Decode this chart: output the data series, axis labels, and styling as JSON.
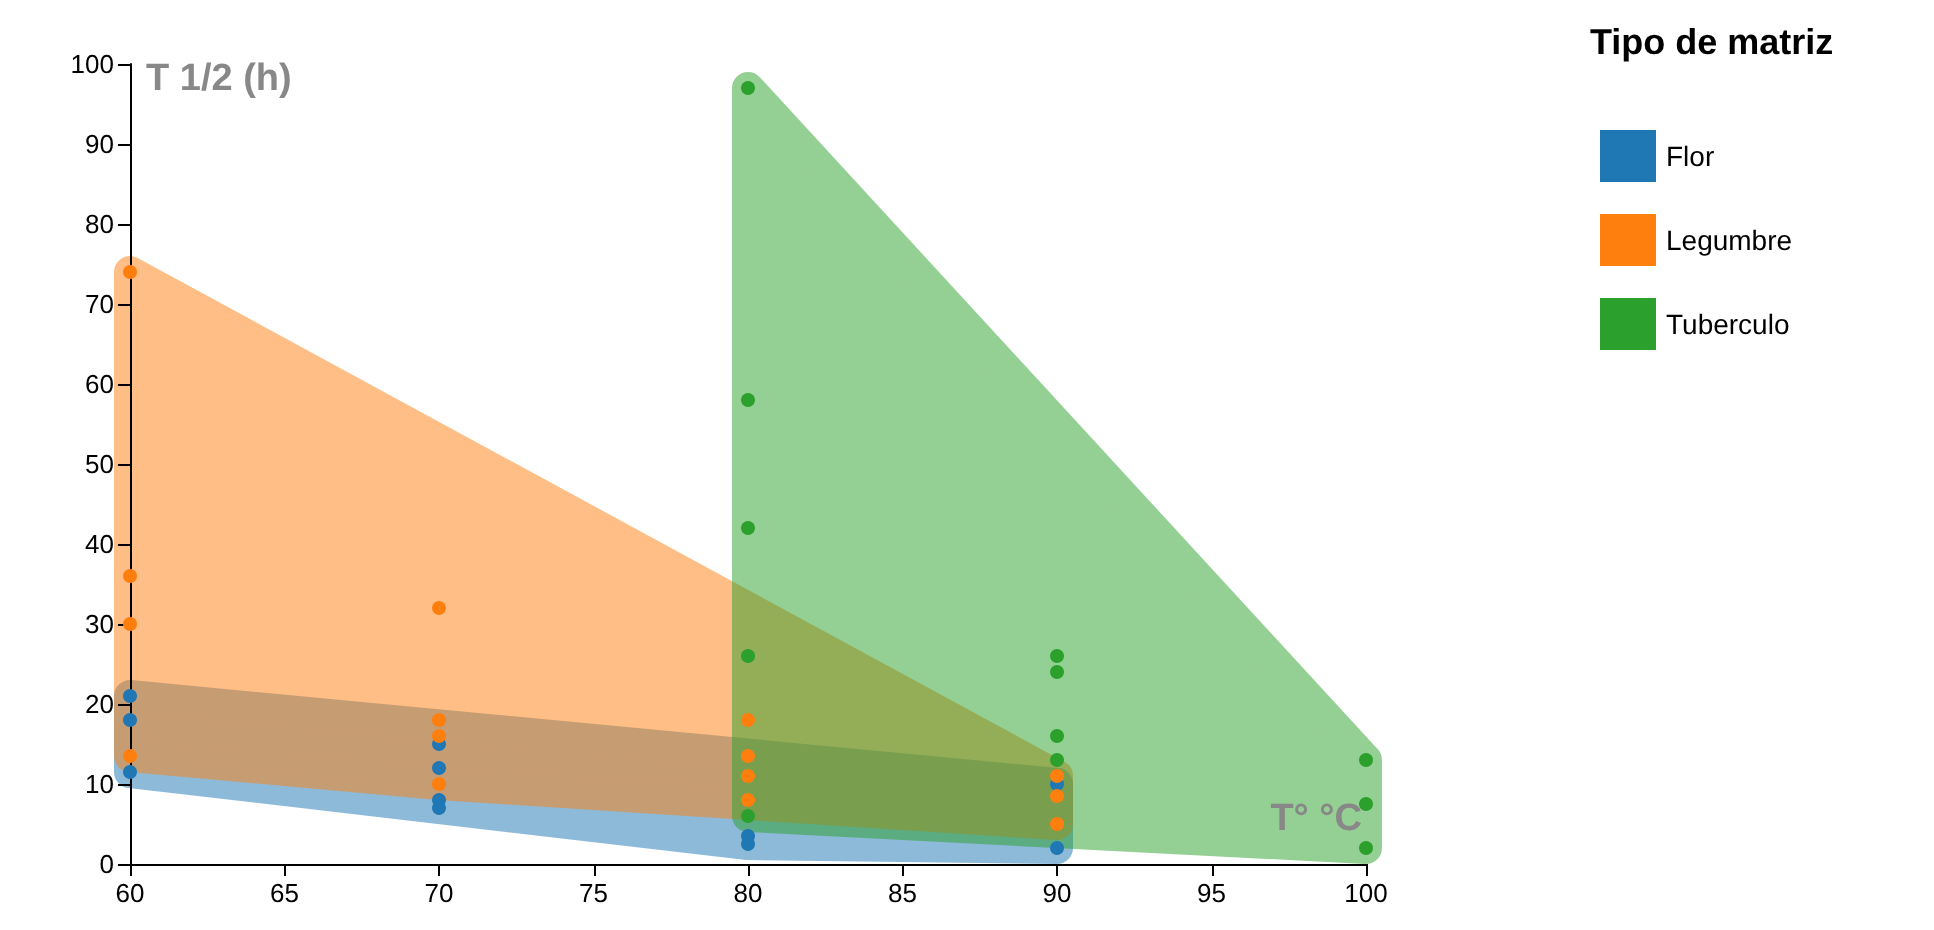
{
  "chart_data": {
    "type": "scatter",
    "xlabel": "T° °C",
    "ylabel": "T 1/2 (h)",
    "legend_title": "Tipo de matriz",
    "legend": "right",
    "marker": "circle",
    "grid": false,
    "xlim": [
      60,
      100
    ],
    "xticks": [
      60,
      65,
      70,
      75,
      80,
      85,
      90,
      95,
      100
    ],
    "ylim": [
      0,
      100
    ],
    "yticks": [
      0,
      10,
      20,
      30,
      40,
      50,
      60,
      70,
      80,
      90,
      100
    ],
    "series": [
      {
        "name": "Flor",
        "color": "#1f77b4",
        "x": [
          60,
          60,
          60,
          70,
          70,
          70,
          70,
          80,
          80,
          90,
          90
        ],
        "values": [
          21,
          18,
          11.5,
          15,
          12,
          8,
          7,
          3.5,
          2.5,
          10,
          2
        ]
      },
      {
        "name": "Legumbre",
        "color": "#ff7f0e",
        "x": [
          60,
          60,
          60,
          60,
          70,
          70,
          70,
          70,
          80,
          80,
          80,
          80,
          90,
          90,
          90
        ],
        "values": [
          74,
          36,
          30,
          13.5,
          32,
          18,
          16,
          10,
          18,
          13.5,
          11,
          8,
          11,
          8.5,
          5
        ]
      },
      {
        "name": "Tuberculo",
        "color": "#2ca02c",
        "x": [
          80,
          80,
          80,
          80,
          80,
          90,
          90,
          90,
          90,
          100,
          100,
          100
        ],
        "values": [
          97,
          58,
          42,
          26,
          6,
          26,
          24,
          16,
          13,
          13,
          7.5,
          2
        ]
      }
    ]
  }
}
